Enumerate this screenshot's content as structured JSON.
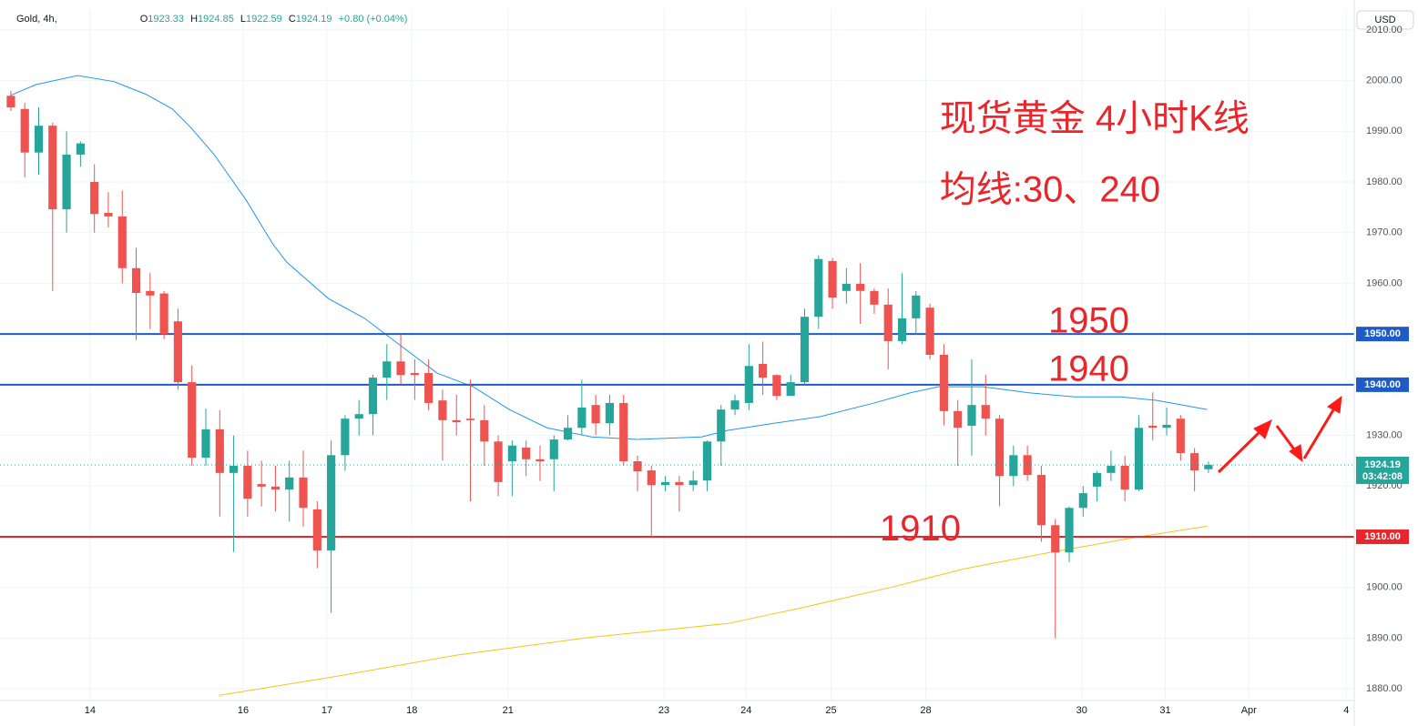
{
  "chart_data": {
    "type": "candlestick",
    "header": {
      "symbol": "Gold, 4h,",
      "ohlc": [
        {
          "key": "O",
          "value": "1923.33"
        },
        {
          "key": "H",
          "value": "1924.85"
        },
        {
          "key": "L",
          "value": "1922.59"
        },
        {
          "key": "C",
          "value": "1924.19"
        }
      ],
      "change": "+0.80 (+0.04%)"
    },
    "currency": "USD",
    "up_color": "#26a69a",
    "down_color": "#ef5350",
    "candles": {
      "open": [
        1997,
        1994.4,
        1985.8,
        1991.1,
        1974.6,
        1985.4,
        1980,
        1973.9,
        1973.2,
        1963,
        1958.5,
        1958,
        1952.5,
        1940.5,
        1925.6,
        1931.2,
        1922.6,
        1924,
        1920.4,
        1919.9,
        1919.3,
        1921.7,
        1915.4,
        1907.3,
        1926.1,
        1933.3,
        1934.2,
        1941.4,
        1944.6,
        1942.3,
        1942.3,
        1936.9,
        1933,
        1933.3,
        1933,
        1928.8,
        1924.9,
        1927.6,
        1925.3,
        1925.3,
        1929.2,
        1931.5,
        1936,
        1932.4,
        1936.4,
        1924.9,
        1923.1,
        1920.2,
        1920.8,
        1920.2,
        1921.1,
        1928.8,
        1935.1,
        1936.4,
        1944.1,
        1941.9,
        1937.8,
        1940.5,
        1953.4,
        1964.4,
        1958.5,
        1959.9,
        1958.5,
        1955.8,
        1948.6,
        1953.1,
        1955.2,
        1945.9,
        1934.8,
        1931.9,
        1936,
        1933.3,
        1922,
        1926.1,
        1922.2,
        1912.3,
        1906.9,
        1915.7,
        1919.9,
        1922.6,
        1924,
        1919.3,
        1931.9,
        1931.5,
        1933.3,
        1926.5,
        1923.33
      ],
      "high": [
        1998,
        1995.6,
        1994.7,
        1991.7,
        1990,
        1988,
        1983.5,
        1978,
        1978.3,
        1967,
        1962,
        1958.5,
        1955,
        1943.8,
        1935.3,
        1935,
        1930,
        1927,
        1925,
        1924,
        1925,
        1927,
        1917,
        1929,
        1934,
        1937,
        1942,
        1948,
        1950,
        1945,
        1945,
        1939,
        1938,
        1941,
        1936,
        1930,
        1929,
        1929,
        1928,
        1930,
        1934,
        1941,
        1938,
        1938,
        1938,
        1926,
        1924,
        1922,
        1922,
        1923,
        1929,
        1936,
        1938,
        1948,
        1948.5,
        1942,
        1942,
        1955,
        1965.5,
        1965,
        1963,
        1964,
        1959,
        1959,
        1962,
        1958.5,
        1956,
        1948,
        1937,
        1945,
        1942,
        1934,
        1928,
        1928,
        1924,
        1913.5,
        1916,
        1920,
        1923,
        1927,
        1926,
        1934,
        1938.5,
        1935.5,
        1934,
        1927.5,
        1924.85
      ],
      "low": [
        1994,
        1980.9,
        1981.4,
        1958.5,
        1970,
        1983,
        1970,
        1971,
        1960,
        1948.8,
        1951,
        1949,
        1939,
        1924,
        1924,
        1914,
        1907,
        1914,
        1916,
        1915,
        1913,
        1912,
        1903.8,
        1895,
        1923,
        1930,
        1930,
        1937,
        1940,
        1937,
        1935,
        1925,
        1930,
        1917,
        1924,
        1918,
        1918,
        1922,
        1921,
        1919,
        1929,
        1930,
        1930,
        1930,
        1924,
        1919,
        1910,
        1919,
        1915,
        1919,
        1919,
        1924,
        1934,
        1935,
        1938,
        1937,
        1938,
        1940,
        1951,
        1955,
        1956,
        1952,
        1954,
        1943,
        1948,
        1950,
        1945,
        1932,
        1924,
        1926,
        1930,
        1916,
        1920,
        1921,
        1909,
        1890,
        1905,
        1914,
        1917,
        1921,
        1917,
        1919,
        1929,
        1930,
        1925,
        1919,
        1922.59
      ],
      "close": [
        1994.7,
        1985.8,
        1991.1,
        1974.6,
        1985.4,
        1987.6,
        1973.7,
        1973.2,
        1963,
        1958.1,
        1957.6,
        1950,
        1940.5,
        1925.6,
        1931.2,
        1922.6,
        1924,
        1917.5,
        1919.9,
        1919.3,
        1921.7,
        1915.7,
        1907.3,
        1926.1,
        1933.3,
        1934.2,
        1941.4,
        1944.6,
        1941.9,
        1941.9,
        1936.4,
        1933,
        1932.6,
        1933,
        1928.8,
        1920.8,
        1928,
        1925.3,
        1924.9,
        1929.2,
        1931.5,
        1935.5,
        1932.4,
        1936.4,
        1924.9,
        1922.9,
        1920.2,
        1920.8,
        1920.2,
        1921.1,
        1928.8,
        1935.1,
        1936.9,
        1943.7,
        1941.4,
        1937.8,
        1940.5,
        1953.4,
        1964.8,
        1957.2,
        1959.9,
        1958.5,
        1955.8,
        1948.6,
        1953.1,
        1957.6,
        1945.9,
        1934.8,
        1931.5,
        1936,
        1933.3,
        1922,
        1926.1,
        1922.2,
        1912.3,
        1906.9,
        1915.7,
        1918.6,
        1922.6,
        1924,
        1919.3,
        1931.5,
        1931.5,
        1932.1,
        1926.5,
        1923.1,
        1924.19
      ]
    },
    "lines": [
      {
        "color": "#2196f3",
        "x": [
          0,
          1.8,
          4.8,
          7.4,
          9.7,
          11.6,
          12.9,
          14.6,
          16.9,
          18.8,
          19.8,
          22.8,
          25.4,
          28,
          30.6,
          33.2,
          35.8,
          38.5,
          41.7,
          45,
          49.6,
          51.5,
          54.8,
          58.1,
          62,
          64.6,
          66.6,
          69.8,
          73.1,
          76.4,
          79.7,
          82.3,
          85.9
        ],
        "values": [
          1997.1,
          1999.2,
          2001,
          1999.8,
          1997.3,
          1994.4,
          1990.8,
          1985.4,
          1976.4,
          1967.8,
          1964.2,
          1957,
          1953.1,
          1947.7,
          1942.3,
          1939.6,
          1935.1,
          1931.5,
          1929.7,
          1929.2,
          1929.7,
          1931,
          1932.4,
          1933.7,
          1936.4,
          1938.4,
          1939.6,
          1939.6,
          1938.4,
          1937.6,
          1937.6,
          1936.9,
          1935.1
        ]
      },
      {
        "color": "#f5c518",
        "x": [
          14.9,
          22.8,
          31.9,
          41.7,
          51.5,
          56.8,
          63.3,
          68.5,
          74.4,
          81,
          85.9
        ],
        "values": [
          1878.7,
          1882.2,
          1886.6,
          1890.2,
          1892.9,
          1896,
          1900.1,
          1903.7,
          1906.8,
          1910,
          1912.1
        ]
      }
    ],
    "levels": [
      {
        "value": 1950,
        "label": "1950.00",
        "color": "#1e5bc6"
      },
      {
        "value": 1940,
        "label": "1940.00",
        "color": "#1e5bc6"
      },
      {
        "value": 1910,
        "label": "1910.00",
        "color": "#e8262b"
      }
    ],
    "last_price": {
      "value": 1924.19,
      "label": "1924.19",
      "countdown": "03:42:08",
      "color": "#26a69a"
    },
    "annotations": [
      {
        "text": "现货黄金 4小时K线",
        "x": 66.7,
        "y": 1992
      },
      {
        "text": "均线:30、240",
        "x": 66.7,
        "y": 1978
      },
      {
        "text": "1950",
        "x": 74.5,
        "y": 1952.2
      },
      {
        "text": "1940",
        "x": 74.5,
        "y": 1942.7
      },
      {
        "text": "1910",
        "x": 62.4,
        "y": 1911.2
      }
    ],
    "xlim": [
      -0.78,
      96.47
    ],
    "ylim": [
      1877.7,
      2014.1
    ],
    "xticks": [
      {
        "value": 5.69,
        "label": "14"
      },
      {
        "value": 16.68,
        "label": "16"
      },
      {
        "value": 22.7,
        "label": "17"
      },
      {
        "value": 28.8,
        "label": "18"
      },
      {
        "value": 35.7,
        "label": "21"
      },
      {
        "value": 46.9,
        "label": "23"
      },
      {
        "value": 52.8,
        "label": "24"
      },
      {
        "value": 58.9,
        "label": "25"
      },
      {
        "value": 65.7,
        "label": "28"
      },
      {
        "value": 76.9,
        "label": "30"
      },
      {
        "value": 82.9,
        "label": "31"
      },
      {
        "value": 88.9,
        "label": "Apr"
      },
      {
        "value": 95.9,
        "label": "4"
      }
    ],
    "yticks": [
      {
        "value": 1880,
        "label": "1880.00"
      },
      {
        "value": 1890,
        "label": "1890.00"
      },
      {
        "value": 1900,
        "label": "1900.00"
      },
      {
        "value": 1910,
        "label": "1910.00"
      },
      {
        "value": 1920,
        "label": "1920.00"
      },
      {
        "value": 1930,
        "label": "1930.00"
      },
      {
        "value": 1940,
        "label": "1940.00"
      },
      {
        "value": 1950,
        "label": "1950.00"
      },
      {
        "value": 1960,
        "label": "1960.00"
      },
      {
        "value": 1970,
        "label": "1970.00"
      },
      {
        "value": 1980,
        "label": "1980.00"
      },
      {
        "value": 1990,
        "label": "1990.00"
      },
      {
        "value": 2000,
        "label": "2000.00"
      },
      {
        "value": 2010,
        "label": "2010.00"
      }
    ],
    "grid": true
  }
}
